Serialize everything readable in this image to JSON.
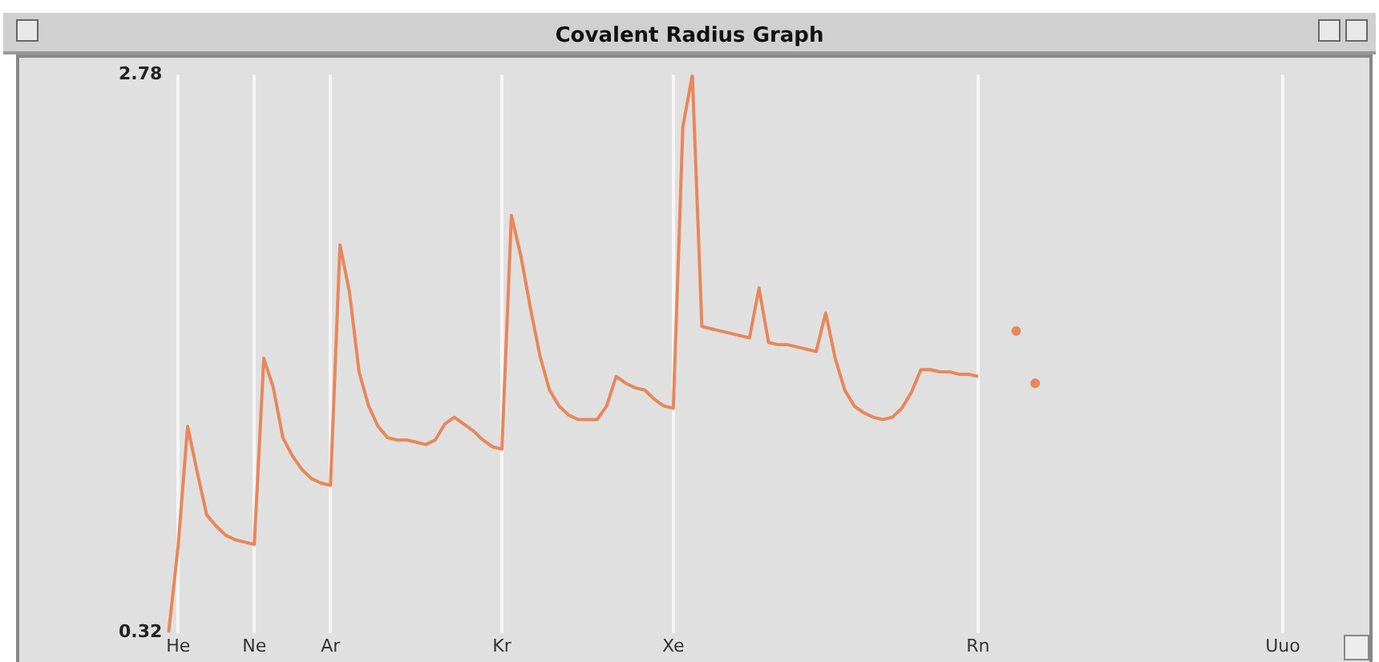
{
  "chart_data": {
    "type": "line",
    "title": "Covalent Radius Graph",
    "categories": [
      null,
      "He",
      null,
      null,
      null,
      null,
      null,
      null,
      null,
      "Ne",
      null,
      null,
      null,
      null,
      null,
      null,
      null,
      "Ar",
      null,
      null,
      null,
      null,
      null,
      null,
      null,
      null,
      null,
      null,
      null,
      null,
      null,
      null,
      null,
      null,
      null,
      "Kr",
      null,
      null,
      null,
      null,
      null,
      null,
      null,
      null,
      null,
      null,
      null,
      null,
      null,
      null,
      null,
      null,
      null,
      "Xe",
      null,
      null,
      null,
      null,
      null,
      null,
      null,
      null,
      null,
      null,
      null,
      null,
      null,
      null,
      null,
      null,
      null,
      null,
      null,
      null,
      null,
      null,
      null,
      null,
      null,
      null,
      null,
      null,
      null,
      null,
      null,
      "Rn",
      null,
      null,
      null,
      null,
      null,
      null,
      null,
      null,
      null,
      null,
      null,
      null,
      null,
      null,
      null,
      null,
      null,
      null,
      null,
      null,
      null,
      null,
      null,
      null,
      null,
      null,
      null,
      null,
      null,
      null,
      null,
      "Uuo"
    ],
    "series": [
      {
        "color": "#e8875a",
        "values": [
          0.32,
          0.7,
          1.23,
          1.03,
          0.84,
          0.79,
          0.75,
          0.73,
          0.72,
          0.71,
          1.53,
          1.4,
          1.18,
          1.1,
          1.04,
          1.0,
          0.98,
          0.97,
          2.03,
          1.82,
          1.47,
          1.32,
          1.23,
          1.18,
          1.17,
          1.17,
          1.16,
          1.15,
          1.17,
          1.24,
          1.27,
          1.24,
          1.21,
          1.17,
          1.14,
          1.13,
          2.16,
          1.98,
          1.75,
          1.54,
          1.39,
          1.32,
          1.28,
          1.26,
          1.26,
          1.26,
          1.32,
          1.45,
          1.42,
          1.4,
          1.39,
          1.35,
          1.32,
          1.31,
          2.55,
          2.78,
          1.67,
          1.66,
          1.65,
          1.64,
          1.63,
          1.62,
          1.84,
          1.6,
          1.59,
          1.59,
          1.58,
          1.57,
          1.56,
          1.73,
          1.53,
          1.39,
          1.32,
          1.29,
          1.27,
          1.26,
          1.27,
          1.31,
          1.38,
          1.48,
          1.48,
          1.47,
          1.47,
          1.46,
          1.46,
          1.45,
          null,
          null,
          null,
          1.65,
          null,
          1.42,
          null,
          null,
          null,
          null,
          null,
          null,
          null,
          null,
          null,
          null,
          null,
          null,
          null,
          null,
          null,
          null,
          null,
          null,
          null,
          null,
          null,
          null,
          null,
          null,
          null,
          null
        ]
      }
    ],
    "ylim": [
      0.32,
      2.78
    ],
    "yticks": [
      0.32,
      2.78
    ],
    "grid": "x",
    "legend": false
  }
}
